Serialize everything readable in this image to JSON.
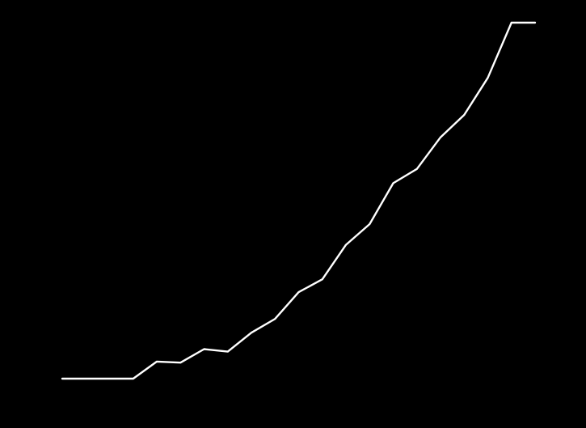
{
  "chart_data": {
    "type": "line",
    "title": "",
    "xlabel": "",
    "ylabel": "",
    "grid": false,
    "legend": "none",
    "x": [
      1,
      2,
      3,
      4,
      5,
      6,
      7,
      8,
      9,
      10,
      11,
      12,
      13,
      14,
      15,
      16,
      17,
      18,
      19,
      20,
      21
    ],
    "xlim": [
      1,
      21
    ],
    "ylim": [
      0,
      100
    ],
    "series": [
      {
        "color": "#ffffff",
        "values": [
          0,
          0,
          0,
          0,
          4.8,
          4.5,
          8.3,
          7.6,
          12.9,
          16.8,
          24.3,
          27.9,
          37.6,
          43.4,
          54.9,
          58.9,
          67.8,
          74.1,
          84.5,
          100,
          100
        ]
      }
    ]
  },
  "colors": {
    "background": "#000000",
    "line": "#ffffff"
  }
}
